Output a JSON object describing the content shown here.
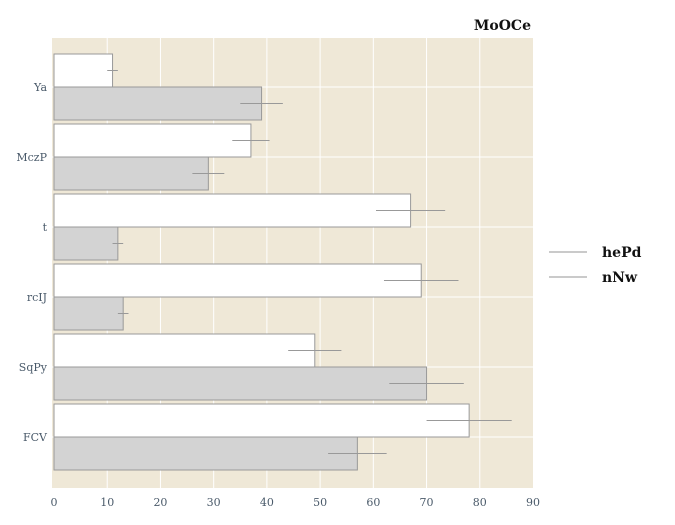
{
  "chart_data": {
    "type": "bar",
    "orientation": "horizontal",
    "title": "MoOCe",
    "xlabel": "",
    "ylabel": "",
    "xlim": [
      0,
      90
    ],
    "xticks": [
      0,
      10,
      20,
      30,
      40,
      50,
      60,
      70,
      80,
      90
    ],
    "grid": true,
    "legend_position": "right",
    "categories": [
      "Ya",
      "MczP",
      "t",
      "rcIJ",
      "SqPy",
      "FCV"
    ],
    "series": [
      {
        "name": "hePd",
        "color": "#ffffff",
        "values": [
          11,
          37,
          67,
          69,
          49,
          78
        ],
        "errors": [
          1,
          3.5,
          6.5,
          7,
          5,
          8
        ]
      },
      {
        "name": "nNw",
        "color": "#d3d3d3",
        "values": [
          39,
          29,
          12,
          13,
          70,
          57
        ],
        "errors": [
          4,
          3,
          1,
          1,
          7,
          5.5
        ]
      }
    ],
    "colors": {
      "plot_background": "#efe8d7",
      "bar_edge": "#999999",
      "error_bar": "#999999",
      "grid": "#ffffff"
    }
  }
}
